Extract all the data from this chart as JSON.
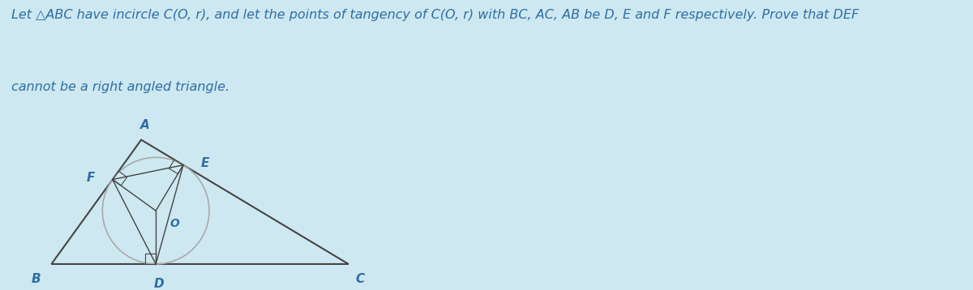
{
  "bg_color": "#cde8f0",
  "panel_bg": "#ffffff",
  "text_color": "#2e6da4",
  "title_line1": "Let △ABC have incircle C(O, r), and let the points of tangency of C(O, r) with BC, AC, AB be D, E and F respectively. Prove that DEF",
  "title_line2": "cannot be a right angled triangle.",
  "title_fontsize": 11.5,
  "A": [
    0.33,
    0.82
  ],
  "B": [
    0.07,
    0.1
  ],
  "C": [
    0.93,
    0.1
  ],
  "label_fontsize": 11,
  "line_color": "#444444",
  "circle_color": "#aaaaaa"
}
